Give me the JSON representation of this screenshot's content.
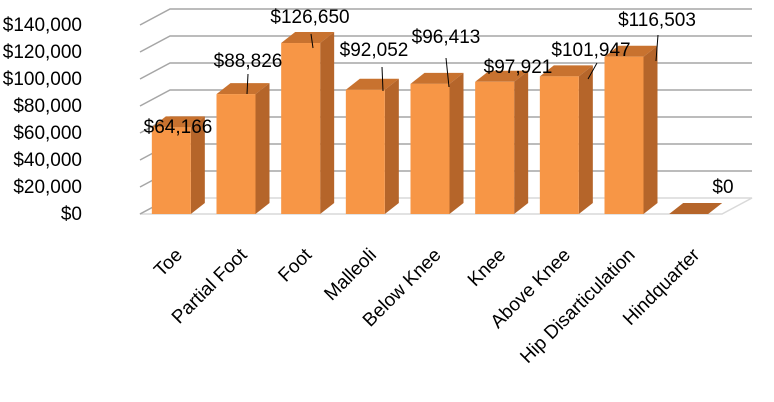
{
  "chart_data": {
    "type": "bar",
    "style": "3d-column",
    "categories": [
      "Toe",
      "Partial Foot",
      "Foot",
      "Malleoli",
      "Below Knee",
      "Knee",
      "Above Knee",
      "Hip Disarticulation",
      "Hindquarter"
    ],
    "values": [
      64166,
      88826,
      126650,
      92052,
      96413,
      97921,
      101947,
      116503,
      0
    ],
    "data_labels": [
      "$64,166",
      "$88,826",
      "$126,650",
      "$92,052",
      "$96,413",
      "$97,921",
      "$101,947",
      "$116,503",
      "$0"
    ],
    "y_ticks": [
      0,
      20000,
      40000,
      60000,
      80000,
      100000,
      120000,
      140000
    ],
    "y_tick_labels": [
      "$0",
      "$20,000",
      "$40,000",
      "$60,000",
      "$80,000",
      "$100,000",
      "$120,000",
      "$140,000"
    ],
    "ylim": [
      0,
      140000
    ],
    "title": "",
    "xlabel": "",
    "ylabel": "",
    "grid": true,
    "legend": "none",
    "colors": {
      "bar_front": "#F79646",
      "bar_side": "#B5652A",
      "bar_top": "#C8722F",
      "gridline": "#A6A6A6",
      "floor": "#D9D9D9"
    }
  }
}
